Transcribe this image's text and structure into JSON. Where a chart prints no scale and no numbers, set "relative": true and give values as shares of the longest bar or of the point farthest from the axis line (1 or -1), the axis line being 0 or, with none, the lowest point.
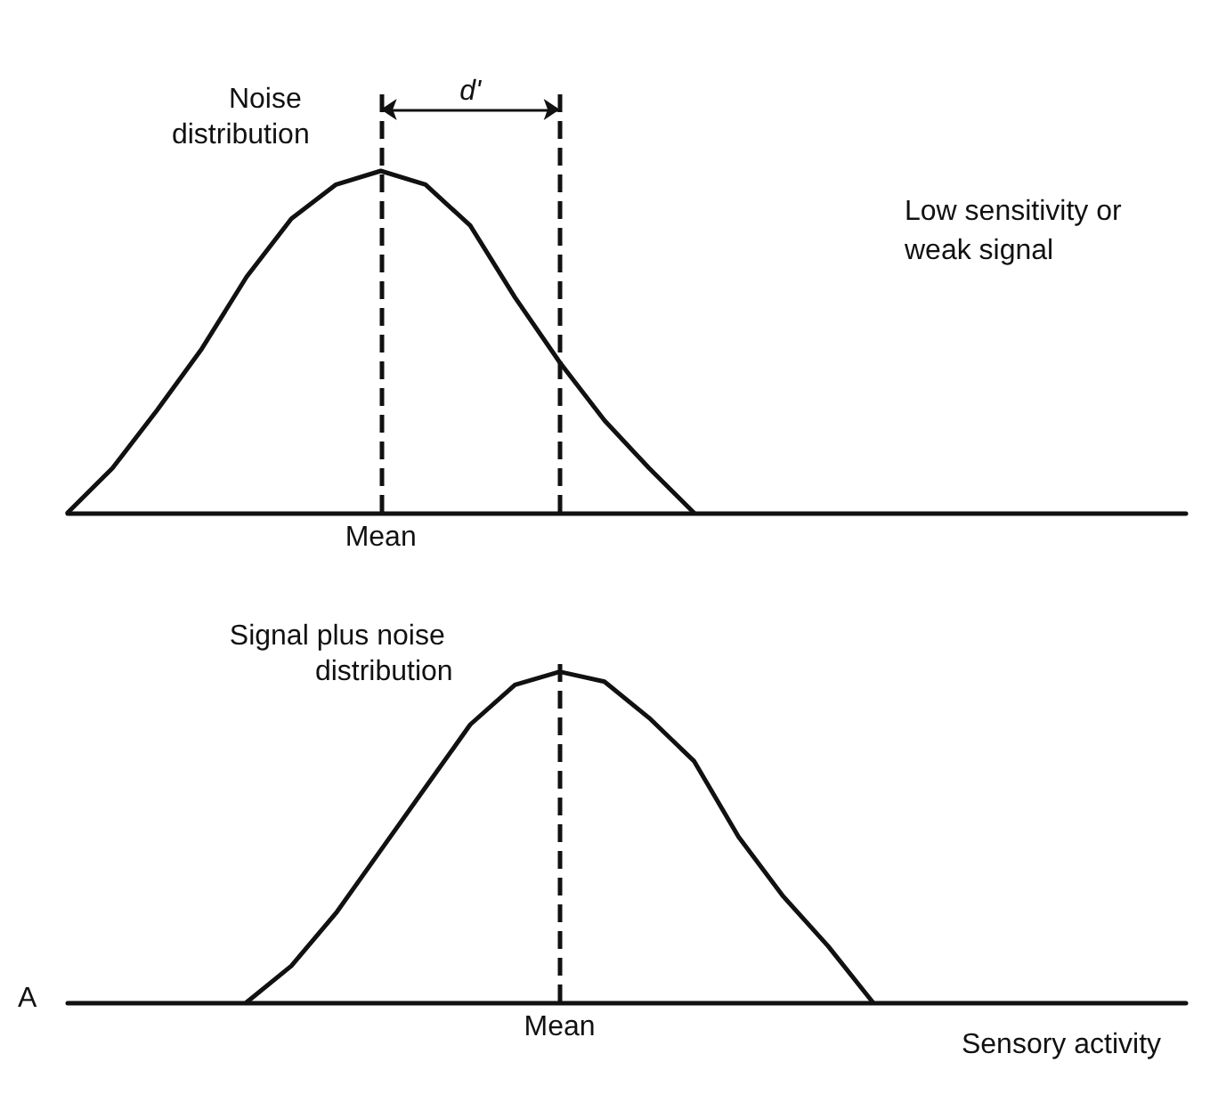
{
  "chart_data": [
    {
      "type": "line",
      "relative": true,
      "grid": false,
      "legend": false,
      "line_style": "solid",
      "categories": [
        null,
        null,
        null,
        null,
        null,
        null,
        null,
        null,
        null,
        null,
        null,
        null,
        null,
        null,
        null,
        null,
        null,
        null,
        null,
        null,
        null,
        null,
        null,
        null,
        null,
        null
      ],
      "series": [
        {
          "name": "Noise distribution",
          "color": "#111111",
          "values": [
            0,
            0.13,
            0.3,
            0.48,
            0.69,
            0.86,
            0.96,
            1,
            0.96,
            0.84,
            0.63,
            0.44,
            0.27,
            0.13,
            0,
            null,
            null,
            null,
            null,
            null,
            null,
            null,
            null,
            null,
            null,
            null
          ]
        }
      ],
      "ref_lines": [
        {
          "axis": "x",
          "label": "Mean",
          "line_style": "dashed"
        },
        {
          "axis": "x",
          "label": null,
          "line_style": "dashed"
        }
      ],
      "annotations": [
        "d'",
        "Low sensitivity or weak signal"
      ]
    },
    {
      "type": "line",
      "relative": true,
      "grid": false,
      "legend": false,
      "line_style": "solid",
      "xlabel": "Sensory activity",
      "categories": [
        null,
        null,
        null,
        null,
        null,
        null,
        null,
        null,
        null,
        null,
        null,
        null,
        null,
        null,
        null,
        null,
        null,
        null,
        null,
        null,
        null,
        null,
        null,
        null,
        null,
        null
      ],
      "series": [
        {
          "name": "Signal plus noise distribution",
          "color": "#111111",
          "values": [
            null,
            null,
            null,
            null,
            0,
            0.11,
            0.27,
            0.46,
            0.65,
            0.84,
            0.96,
            1,
            0.97,
            0.86,
            0.73,
            0.5,
            0.32,
            0.17,
            0,
            null,
            null,
            null,
            null,
            null,
            null,
            null
          ]
        }
      ],
      "ref_lines": [
        {
          "axis": "x",
          "label": "Mean",
          "line_style": "dashed"
        }
      ],
      "annotations": [
        "A"
      ]
    }
  ]
}
